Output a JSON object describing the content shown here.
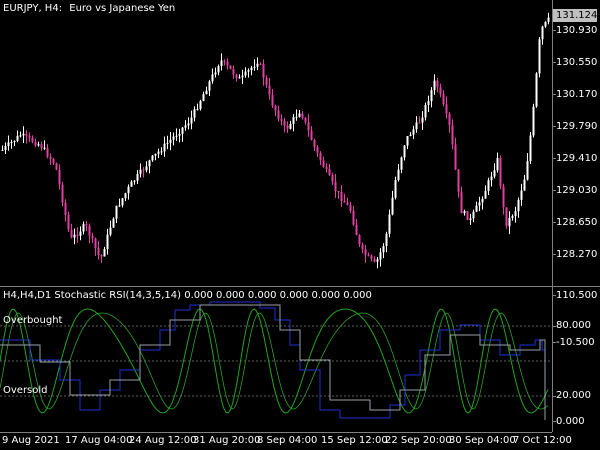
{
  "header": {
    "symbol_tf": "EURJPY, H4:",
    "description": "Euro vs Japanese Yen"
  },
  "price_axis": {
    "labels": [
      "130.930",
      "130.550",
      "130.170",
      "129.790",
      "129.410",
      "129.030",
      "128.650",
      "128.270"
    ],
    "current_price": "131.124"
  },
  "indicator": {
    "title": "H4,H4,D1 Stochastic RSI(14,3,5,14) 0.000 0.000 0.000 0.000 0.000 0.000",
    "overbought_label": "Overbought",
    "oversold_label": "Oversold",
    "axis_labels": [
      "110.500",
      "80.000",
      "-10.500",
      "20.000",
      "0.000"
    ]
  },
  "time_axis": {
    "labels": [
      "9 Aug 2021",
      "17 Aug 04:00",
      "24 Aug 12:00",
      "31 Aug 20:00",
      "8 Sep 04:00",
      "15 Sep 12:00",
      "22 Sep 20:00",
      "30 Sep 04:00",
      "7 Oct 12:00"
    ]
  },
  "colors": {
    "background": "#000000",
    "bull_candle": "#ffffff",
    "bear_candle": "#e040a0",
    "grid": "#808080",
    "stoch_green": "#1fa51f",
    "stoch_blue": "#1f2fd0",
    "stoch_gray": "#9aa0a6",
    "level_line": "#606060"
  }
}
